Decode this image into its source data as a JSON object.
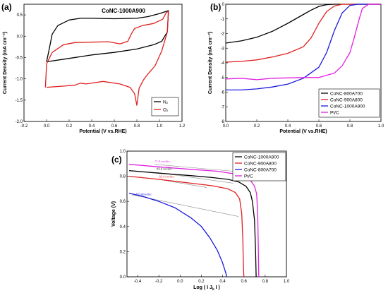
{
  "chart_data": [
    {
      "panel": "(a)",
      "type": "line",
      "title": "CoNC-1000A900",
      "xlabel": "Potential (V vs.RHE)",
      "ylabel": "Current Density (mA cm⁻²)",
      "xlim": [
        -0.2,
        1.2
      ],
      "ylim": [
        -2.0,
        0.75
      ],
      "xticks": [
        "-0.2",
        "0.0",
        "0.2",
        "0.4",
        "0.6",
        "0.8",
        "1.0",
        "1.2"
      ],
      "yticks": [
        "-2.0",
        "-1.5",
        "-1.0",
        "-0.5",
        "0.0",
        "0.5"
      ],
      "legend_position": "bottom-right",
      "series": [
        {
          "name": "N₂",
          "color": "#000000",
          "points": [
            [
              0,
              -0.6
            ],
            [
              0.2,
              -0.52
            ],
            [
              0.4,
              -0.44
            ],
            [
              0.6,
              -0.38
            ],
            [
              0.8,
              -0.3
            ],
            [
              0.95,
              -0.2
            ],
            [
              1.02,
              -0.12
            ],
            [
              1.07,
              0.1
            ],
            [
              1.08,
              0.6
            ],
            [
              1.0,
              0.53
            ],
            [
              0.9,
              0.46
            ],
            [
              0.8,
              0.42
            ],
            [
              0.6,
              0.41
            ],
            [
              0.4,
              0.42
            ],
            [
              0.3,
              0.42
            ],
            [
              0.2,
              0.38
            ],
            [
              0.1,
              0.25
            ],
            [
              0.05,
              0.05
            ],
            [
              0.02,
              -0.35
            ],
            [
              0,
              -0.6
            ]
          ]
        },
        {
          "name": "O₂",
          "color": "#e02020",
          "points": [
            [
              -0.01,
              -1.2
            ],
            [
              0,
              -0.65
            ],
            [
              0.05,
              -0.38
            ],
            [
              0.15,
              -0.2
            ],
            [
              0.25,
              -0.15
            ],
            [
              0.4,
              -0.14
            ],
            [
              0.55,
              -0.13
            ],
            [
              0.65,
              -0.18
            ],
            [
              0.72,
              -0.12
            ],
            [
              0.75,
              0.05
            ],
            [
              0.78,
              0.18
            ],
            [
              0.85,
              0.25
            ],
            [
              0.95,
              0.3
            ],
            [
              1.03,
              0.4
            ],
            [
              1.06,
              0.55
            ],
            [
              1.08,
              0.58
            ],
            [
              1.07,
              0.1
            ],
            [
              1.02,
              -0.35
            ],
            [
              0.96,
              -0.7
            ],
            [
              0.9,
              -0.88
            ],
            [
              0.86,
              -1.02
            ],
            [
              0.82,
              -1.22
            ],
            [
              0.8,
              -1.62
            ],
            [
              0.78,
              -1.35
            ],
            [
              0.74,
              -1.2
            ],
            [
              0.65,
              -1.12
            ],
            [
              0.5,
              -1.06
            ],
            [
              0.35,
              -1.12
            ],
            [
              0.3,
              -1.1
            ],
            [
              0.25,
              -1.15
            ],
            [
              0.1,
              -1.18
            ],
            [
              0,
              -1.2
            ]
          ]
        }
      ]
    },
    {
      "panel": "(b)",
      "type": "line",
      "xlabel": "Potential (V vs.RHE)",
      "ylabel": "Current Density (mA cm⁻²)",
      "xlim": [
        0.0,
        1.0
      ],
      "ylim": [
        -8,
        0
      ],
      "xticks": [
        "0.0",
        "0.2",
        "0.4",
        "0.6",
        "0.8",
        "1.0"
      ],
      "yticks": [
        "-8",
        "-7",
        "-6",
        "-5",
        "-4",
        "-3",
        "-2",
        "-1",
        "0"
      ],
      "legend_position": "bottom-right",
      "series": [
        {
          "name": "CoNC-800A700",
          "color": "#000000",
          "points": [
            [
              0,
              -2.65
            ],
            [
              0.1,
              -2.5
            ],
            [
              0.2,
              -2.25
            ],
            [
              0.3,
              -1.85
            ],
            [
              0.4,
              -1.3
            ],
            [
              0.5,
              -0.7
            ],
            [
              0.55,
              -0.4
            ],
            [
              0.6,
              -0.15
            ],
            [
              0.65,
              -0.03
            ],
            [
              0.7,
              0
            ],
            [
              1.0,
              0
            ]
          ]
        },
        {
          "name": "CoNC-900A800",
          "color": "#e02020",
          "points": [
            [
              0,
              -3.95
            ],
            [
              0.1,
              -3.9
            ],
            [
              0.2,
              -3.8
            ],
            [
              0.3,
              -3.6
            ],
            [
              0.4,
              -3.35
            ],
            [
              0.5,
              -2.9
            ],
            [
              0.55,
              -2.3
            ],
            [
              0.6,
              -1.3
            ],
            [
              0.65,
              -0.5
            ],
            [
              0.7,
              -0.12
            ],
            [
              0.75,
              0
            ],
            [
              1.0,
              0
            ]
          ]
        },
        {
          "name": "CoNC-1000A900",
          "color": "#1a1ae0",
          "points": [
            [
              0,
              -5.85
            ],
            [
              0.1,
              -5.85
            ],
            [
              0.2,
              -5.78
            ],
            [
              0.3,
              -5.65
            ],
            [
              0.4,
              -5.45
            ],
            [
              0.5,
              -5.05
            ],
            [
              0.6,
              -4.3
            ],
            [
              0.65,
              -3.3
            ],
            [
              0.7,
              -1.8
            ],
            [
              0.75,
              -0.6
            ],
            [
              0.8,
              -0.08
            ],
            [
              0.85,
              0
            ],
            [
              1.0,
              0
            ]
          ]
        },
        {
          "name": "Pt/C",
          "color": "#e020e0",
          "points": [
            [
              0,
              -5.1
            ],
            [
              0.1,
              -5.05
            ],
            [
              0.2,
              -5.15
            ],
            [
              0.3,
              -5.05
            ],
            [
              0.5,
              -5.0
            ],
            [
              0.6,
              -5.0
            ],
            [
              0.7,
              -4.7
            ],
            [
              0.75,
              -4.2
            ],
            [
              0.8,
              -3.3
            ],
            [
              0.83,
              -2.2
            ],
            [
              0.86,
              -1.0
            ],
            [
              0.88,
              -0.3
            ],
            [
              0.92,
              0
            ],
            [
              1.0,
              0
            ]
          ]
        }
      ]
    },
    {
      "panel": "(c)",
      "type": "line",
      "xlabel": "Log ( I J",
      "xlabel_sub": "k",
      "xlabel_end": " I )",
      "ylabel": "Voltage (V)",
      "xlim": [
        -0.5,
        1.0
      ],
      "ylim": [
        0.0,
        1.0
      ],
      "xticks": [
        "-0.4",
        "-0.2",
        "0.0",
        "0.2",
        "0.4",
        "0.6",
        "0.8",
        "1.0"
      ],
      "yticks": [
        "0.0",
        "0.2",
        "0.4",
        "0.6",
        "0.8",
        "1.0"
      ],
      "legend_position": "top-right",
      "annotations": [
        {
          "text": "71.9 mv/dec",
          "color": "#e020e0",
          "x": -0.24,
          "y": 0.91
        },
        {
          "text": "82.6 mv/dec",
          "color": "#000000",
          "x": -0.22,
          "y": 0.85
        },
        {
          "text": "92.4 mv/dec",
          "color": "#e02020",
          "x": -0.2,
          "y": 0.79
        },
        {
          "text": "183.8mv/dec",
          "color": "#1a1ae0",
          "x": -0.42,
          "y": 0.65
        }
      ],
      "fit_lines": [
        {
          "color": "#888888",
          "points": [
            [
              -0.24,
              0.895
            ],
            [
              0.5,
              0.84
            ]
          ]
        },
        {
          "color": "#888888",
          "points": [
            [
              -0.22,
              0.83
            ],
            [
              0.5,
              0.745
            ]
          ]
        },
        {
          "color": "#888888",
          "points": [
            [
              -0.2,
              0.775
            ],
            [
              0.25,
              0.71
            ]
          ]
        },
        {
          "color": "#888888",
          "points": [
            [
              -0.45,
              0.652
            ],
            [
              0.55,
              0.48
            ]
          ]
        }
      ],
      "series": [
        {
          "name": "CoNC-1000A900",
          "color": "#000000",
          "points": [
            [
              -0.48,
              0.845
            ],
            [
              -0.2,
              0.825
            ],
            [
              0.1,
              0.805
            ],
            [
              0.3,
              0.79
            ],
            [
              0.45,
              0.775
            ],
            [
              0.55,
              0.755
            ],
            [
              0.62,
              0.72
            ],
            [
              0.66,
              0.67
            ],
            [
              0.68,
              0.6
            ],
            [
              0.7,
              0.45
            ],
            [
              0.71,
              0.2
            ],
            [
              0.715,
              0
            ]
          ]
        },
        {
          "name": "CoNC-900A800",
          "color": "#e02020",
          "points": [
            [
              -0.48,
              0.8
            ],
            [
              -0.2,
              0.775
            ],
            [
              0.1,
              0.745
            ],
            [
              0.3,
              0.725
            ],
            [
              0.45,
              0.7
            ],
            [
              0.52,
              0.67
            ],
            [
              0.56,
              0.62
            ],
            [
              0.58,
              0.5
            ],
            [
              0.59,
              0.3
            ],
            [
              0.595,
              0.1
            ],
            [
              0.6,
              0
            ]
          ]
        },
        {
          "name": "CoNC-800A700",
          "color": "#1a1ae0",
          "points": [
            [
              -0.48,
              0.665
            ],
            [
              -0.35,
              0.64
            ],
            [
              -0.2,
              0.6
            ],
            [
              -0.05,
              0.55
            ],
            [
              0.1,
              0.47
            ],
            [
              0.2,
              0.4
            ],
            [
              0.28,
              0.31
            ],
            [
              0.35,
              0.21
            ],
            [
              0.4,
              0.11
            ],
            [
              0.43,
              0.03
            ],
            [
              0.44,
              0
            ]
          ]
        },
        {
          "name": "Pt/C",
          "color": "#e020e0",
          "points": [
            [
              -0.48,
              0.895
            ],
            [
              -0.2,
              0.875
            ],
            [
              0.1,
              0.855
            ],
            [
              0.35,
              0.84
            ],
            [
              0.5,
              0.82
            ],
            [
              0.6,
              0.8
            ],
            [
              0.66,
              0.77
            ],
            [
              0.7,
              0.72
            ],
            [
              0.72,
              0.66
            ],
            [
              0.73,
              0.5
            ],
            [
              0.735,
              0.25
            ],
            [
              0.74,
              0
            ]
          ]
        }
      ]
    }
  ]
}
